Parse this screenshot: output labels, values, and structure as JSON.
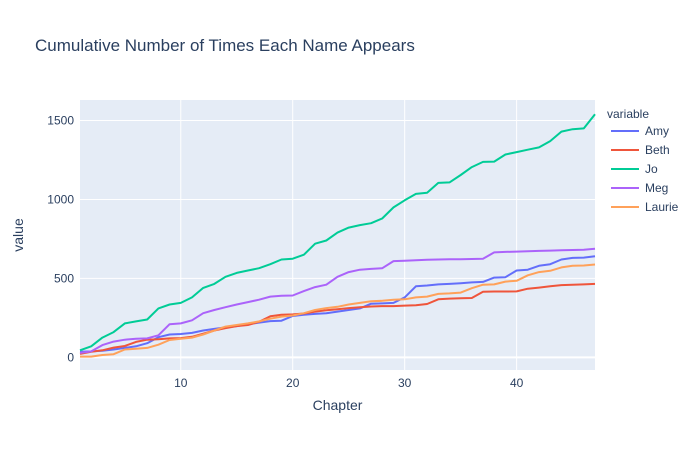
{
  "chart_data": {
    "type": "line",
    "title": "Cumulative Number of Times Each Name Appears",
    "xlabel": "Chapter",
    "ylabel": "value",
    "legend_title": "variable",
    "legend_position": "right",
    "grid": true,
    "xlim": [
      1,
      47
    ],
    "ylim": [
      -80,
      1630
    ],
    "x_ticks": [
      10,
      20,
      30,
      40
    ],
    "y_ticks": [
      0,
      500,
      1000,
      1500
    ],
    "x": [
      1,
      2,
      3,
      4,
      5,
      6,
      7,
      8,
      9,
      10,
      11,
      12,
      13,
      14,
      15,
      16,
      17,
      18,
      19,
      20,
      21,
      22,
      23,
      24,
      25,
      26,
      27,
      28,
      29,
      30,
      31,
      32,
      33,
      34,
      35,
      36,
      37,
      38,
      39,
      40,
      41,
      42,
      43,
      44,
      45,
      46,
      47
    ],
    "series": [
      {
        "name": "Amy",
        "color": "#636efa",
        "values": [
          35,
          38,
          42,
          50,
          60,
          70,
          90,
          128,
          145,
          148,
          155,
          170,
          180,
          190,
          198,
          210,
          220,
          230,
          232,
          262,
          270,
          275,
          280,
          290,
          300,
          310,
          340,
          342,
          345,
          380,
          450,
          455,
          462,
          465,
          470,
          475,
          478,
          505,
          508,
          550,
          555,
          580,
          590,
          620,
          630,
          632,
          640
        ]
      },
      {
        "name": "Beth",
        "color": "#ef553b",
        "values": [
          22,
          35,
          45,
          62,
          72,
          98,
          112,
          115,
          120,
          122,
          130,
          150,
          170,
          185,
          198,
          205,
          225,
          260,
          270,
          272,
          278,
          290,
          298,
          305,
          312,
          318,
          322,
          325,
          325,
          328,
          330,
          338,
          368,
          372,
          374,
          376,
          415,
          417,
          417,
          418,
          435,
          442,
          450,
          458,
          460,
          462,
          465
        ]
      },
      {
        "name": "Jo",
        "color": "#00cc96",
        "values": [
          45,
          70,
          125,
          160,
          215,
          228,
          240,
          310,
          335,
          345,
          380,
          440,
          465,
          510,
          535,
          550,
          565,
          590,
          620,
          625,
          650,
          720,
          740,
          790,
          822,
          838,
          850,
          880,
          950,
          995,
          1035,
          1042,
          1105,
          1108,
          1155,
          1205,
          1238,
          1240,
          1285,
          1300,
          1315,
          1330,
          1370,
          1430,
          1445,
          1450,
          1540
        ]
      },
      {
        "name": "Meg",
        "color": "#ab63fa",
        "values": [
          28,
          38,
          78,
          100,
          112,
          118,
          120,
          140,
          210,
          215,
          235,
          280,
          300,
          318,
          335,
          350,
          365,
          385,
          390,
          392,
          420,
          445,
          460,
          510,
          540,
          555,
          560,
          565,
          610,
          612,
          615,
          618,
          620,
          621,
          622,
          623,
          625,
          665,
          668,
          670,
          672,
          674,
          676,
          678,
          680,
          682,
          688
        ]
      },
      {
        "name": "Laurie",
        "color": "#ffa15a",
        "values": [
          5,
          5,
          15,
          20,
          50,
          55,
          60,
          80,
          110,
          118,
          125,
          145,
          170,
          195,
          205,
          215,
          228,
          245,
          258,
          265,
          280,
          300,
          312,
          320,
          335,
          345,
          355,
          358,
          365,
          368,
          380,
          385,
          402,
          405,
          410,
          438,
          460,
          462,
          480,
          485,
          520,
          540,
          548,
          570,
          580,
          582,
          588
        ]
      }
    ]
  }
}
